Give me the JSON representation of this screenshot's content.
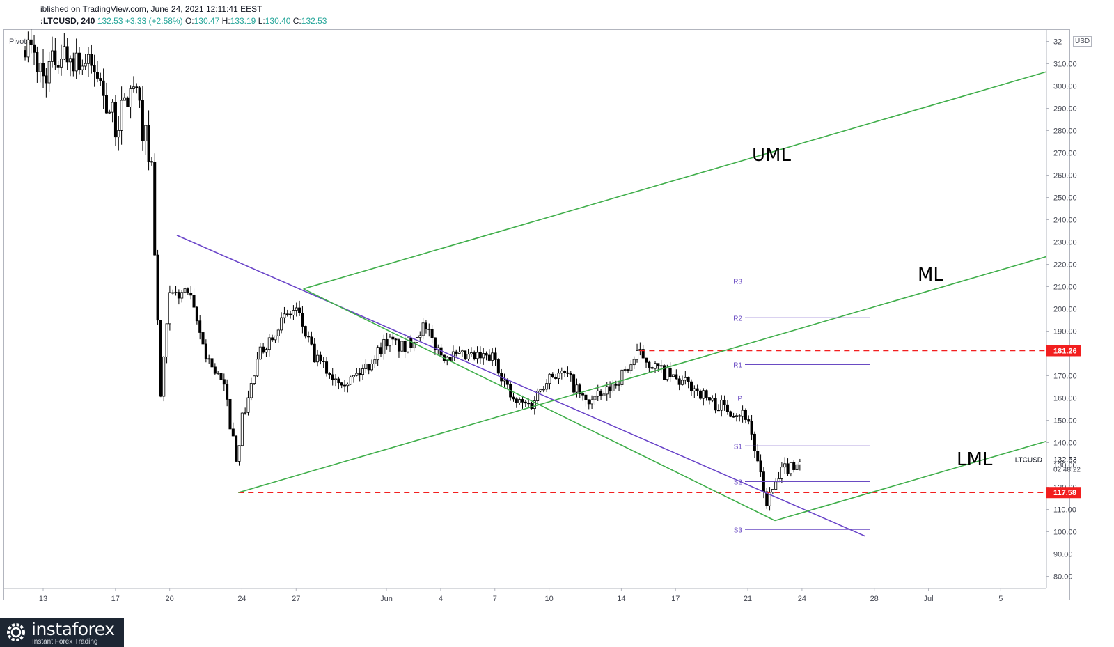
{
  "header": {
    "published": "iblished on TradingView.com, June 24, 2021 12:11:41 EEST",
    "symbol": ":LTCUSD, 240",
    "last": "132.53",
    "change": "+3.33 (+2.58%)",
    "o_label": "O:",
    "o": "130.47",
    "h_label": "H:",
    "h": "133.19",
    "l_label": "L:",
    "l": "130.40",
    "c_label": "C:",
    "c": "132.53"
  },
  "indicator": "Pivots",
  "currency": "USD",
  "price_tag": {
    "symbol": "LTCUSD",
    "price": "132.53",
    "countdown": "02:48:22"
  },
  "colors": {
    "green_line": "#3fae4a",
    "purple_line": "#6a45c9",
    "red_dash": "#f21f1f",
    "candle": "#000000",
    "pivot_line": "#6a4bc3"
  },
  "chart_data": {
    "type": "candlestick",
    "title": "",
    "xlabel": "",
    "ylabel": "",
    "ylim": [
      75,
      325
    ],
    "y_ticks": [
      "80.00",
      "90.00",
      "100.00",
      "110.00",
      "120.00",
      "130.00",
      "140.00",
      "150.00",
      "160.00",
      "170.00",
      "180.00",
      "190.00",
      "200.00",
      "210.00",
      "220.00",
      "230.00",
      "240.00",
      "250.00",
      "260.00",
      "270.00",
      "280.00",
      "290.00",
      "300.00",
      "310.00",
      "32"
    ],
    "x_ticks": [
      {
        "label": "13",
        "date": "2021-05-13"
      },
      {
        "label": "17",
        "date": "2021-05-17"
      },
      {
        "label": "20",
        "date": "2021-05-20"
      },
      {
        "label": "24",
        "date": "2021-05-24"
      },
      {
        "label": "27",
        "date": "2021-05-27"
      },
      {
        "label": "Jun",
        "date": "2021-06-01"
      },
      {
        "label": "4",
        "date": "2021-06-04"
      },
      {
        "label": "7",
        "date": "2021-06-07"
      },
      {
        "label": "10",
        "date": "2021-06-10"
      },
      {
        "label": "14",
        "date": "2021-06-14"
      },
      {
        "label": "17",
        "date": "2021-06-17"
      },
      {
        "label": "21",
        "date": "2021-06-21"
      },
      {
        "label": "24",
        "date": "2021-06-24"
      },
      {
        "label": "28",
        "date": "2021-06-28"
      },
      {
        "label": "Jul",
        "date": "2021-07-01"
      },
      {
        "label": "5",
        "date": "2021-07-05"
      }
    ],
    "price_path": [
      {
        "date": "2021-05-12",
        "price": 320
      },
      {
        "date": "2021-05-13",
        "price": 305
      },
      {
        "date": "2021-05-14",
        "price": 315
      },
      {
        "date": "2021-05-15",
        "price": 312
      },
      {
        "date": "2021-05-16",
        "price": 305
      },
      {
        "date": "2021-05-17",
        "price": 282
      },
      {
        "date": "2021-05-18",
        "price": 300
      },
      {
        "date": "2021-05-19",
        "price": 265
      },
      {
        "date": "2021-05-19.5",
        "price": 160
      },
      {
        "date": "2021-05-20",
        "price": 205
      },
      {
        "date": "2021-05-21",
        "price": 208
      },
      {
        "date": "2021-05-22",
        "price": 180
      },
      {
        "date": "2021-05-23",
        "price": 165
      },
      {
        "date": "2021-05-23.7",
        "price": 133
      },
      {
        "date": "2021-05-24",
        "price": 150
      },
      {
        "date": "2021-05-25",
        "price": 180
      },
      {
        "date": "2021-05-26",
        "price": 193
      },
      {
        "date": "2021-05-27",
        "price": 200
      },
      {
        "date": "2021-05-28",
        "price": 178
      },
      {
        "date": "2021-05-29",
        "price": 170
      },
      {
        "date": "2021-05-30",
        "price": 168
      },
      {
        "date": "2021-05-31",
        "price": 175
      },
      {
        "date": "2021-06-01",
        "price": 186
      },
      {
        "date": "2021-06-02",
        "price": 182
      },
      {
        "date": "2021-06-03",
        "price": 192
      },
      {
        "date": "2021-06-04",
        "price": 180
      },
      {
        "date": "2021-06-05",
        "price": 178
      },
      {
        "date": "2021-06-06",
        "price": 178
      },
      {
        "date": "2021-06-07",
        "price": 178
      },
      {
        "date": "2021-06-08",
        "price": 158
      },
      {
        "date": "2021-06-09",
        "price": 157
      },
      {
        "date": "2021-06-10",
        "price": 171
      },
      {
        "date": "2021-06-11",
        "price": 170
      },
      {
        "date": "2021-06-12",
        "price": 158
      },
      {
        "date": "2021-06-13",
        "price": 161
      },
      {
        "date": "2021-06-14",
        "price": 170
      },
      {
        "date": "2021-06-15",
        "price": 180
      },
      {
        "date": "2021-06-16",
        "price": 173
      },
      {
        "date": "2021-06-17",
        "price": 168
      },
      {
        "date": "2021-06-18",
        "price": 165
      },
      {
        "date": "2021-06-19",
        "price": 158
      },
      {
        "date": "2021-06-20",
        "price": 155
      },
      {
        "date": "2021-06-21",
        "price": 152
      },
      {
        "date": "2021-06-21.5",
        "price": 132
      },
      {
        "date": "2021-06-22",
        "price": 113
      },
      {
        "date": "2021-06-22.5",
        "price": 120
      },
      {
        "date": "2021-06-23",
        "price": 128
      },
      {
        "date": "2021-06-24",
        "price": 132.53
      }
    ],
    "pivots": [
      {
        "label": "R3",
        "value": 212.5
      },
      {
        "label": "R2",
        "value": 196
      },
      {
        "label": "R1",
        "value": 175
      },
      {
        "label": "P",
        "value": 160
      },
      {
        "label": "S1",
        "value": 138.5
      },
      {
        "label": "S2",
        "value": 122.5
      },
      {
        "label": "S3",
        "value": 101
      }
    ],
    "horizontal_levels": [
      {
        "label": "181.26",
        "value": 181.26
      },
      {
        "label": "117.58",
        "value": 117.58
      }
    ],
    "annotations": [
      {
        "text": "UML"
      },
      {
        "text": "ML"
      },
      {
        "text": "LML"
      }
    ],
    "pitchfork": {
      "pivot_a": {
        "date": "2021-05-23.8",
        "price": 117.58
      },
      "pivot_b": {
        "date": "2021-05-27.4",
        "price": 209
      },
      "pivot_c": {
        "date": "2021-06-22.5",
        "price": 105
      }
    },
    "trendline": {
      "start": {
        "date": "2021-05-20.4",
        "price": 233
      },
      "end": {
        "date": "2021-06-27.5",
        "price": 98
      }
    }
  },
  "footer": {
    "brand": "instaforex",
    "tagline": "Instant Forex Trading"
  }
}
